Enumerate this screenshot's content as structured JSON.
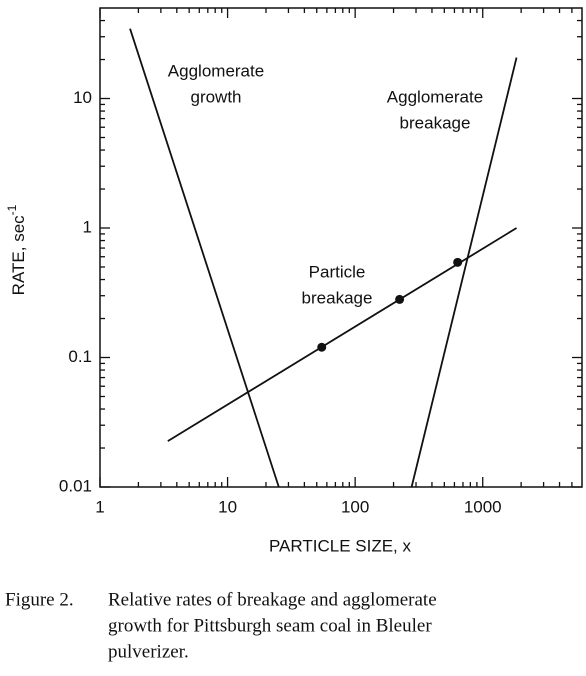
{
  "chart_data": {
    "type": "line",
    "xlabel": "PARTICLE SIZE, x",
    "ylabel": "RATE, sec",
    "ylabel_sup": "-1",
    "xscale": "log",
    "yscale": "log",
    "xlim": [
      1,
      6000
    ],
    "ylim": [
      0.01,
      50
    ],
    "xticks": [
      1,
      10,
      100,
      1000
    ],
    "yticks": [
      0.01,
      0.1,
      1,
      10
    ],
    "color": "#111111",
    "series": [
      {
        "x": [
          1.72,
          25.2
        ],
        "values": [
          34.6,
          0.01
        ]
      },
      {
        "x": [
          277,
          1841
        ],
        "values": [
          0.01,
          20.7
        ]
      },
      {
        "x": [
          3.4,
          1841
        ],
        "values": [
          0.0226,
          1.0
        ]
      }
    ],
    "markers": {
      "x": [
        54.7,
        223,
        636
      ],
      "values": [
        0.12,
        0.281,
        0.543
      ]
    },
    "annotations": [
      {
        "lines": [
          "Agglomerate",
          "growth"
        ]
      },
      {
        "lines": [
          "Agglomerate",
          "breakage"
        ]
      },
      {
        "lines": [
          "Particle",
          "breakage"
        ]
      }
    ],
    "caption": {
      "label": "Figure 2.",
      "lines": [
        "Relative rates of breakage and agglomerate",
        "growth for Pittsburgh seam coal in Bleuler",
        "pulverizer."
      ]
    }
  }
}
